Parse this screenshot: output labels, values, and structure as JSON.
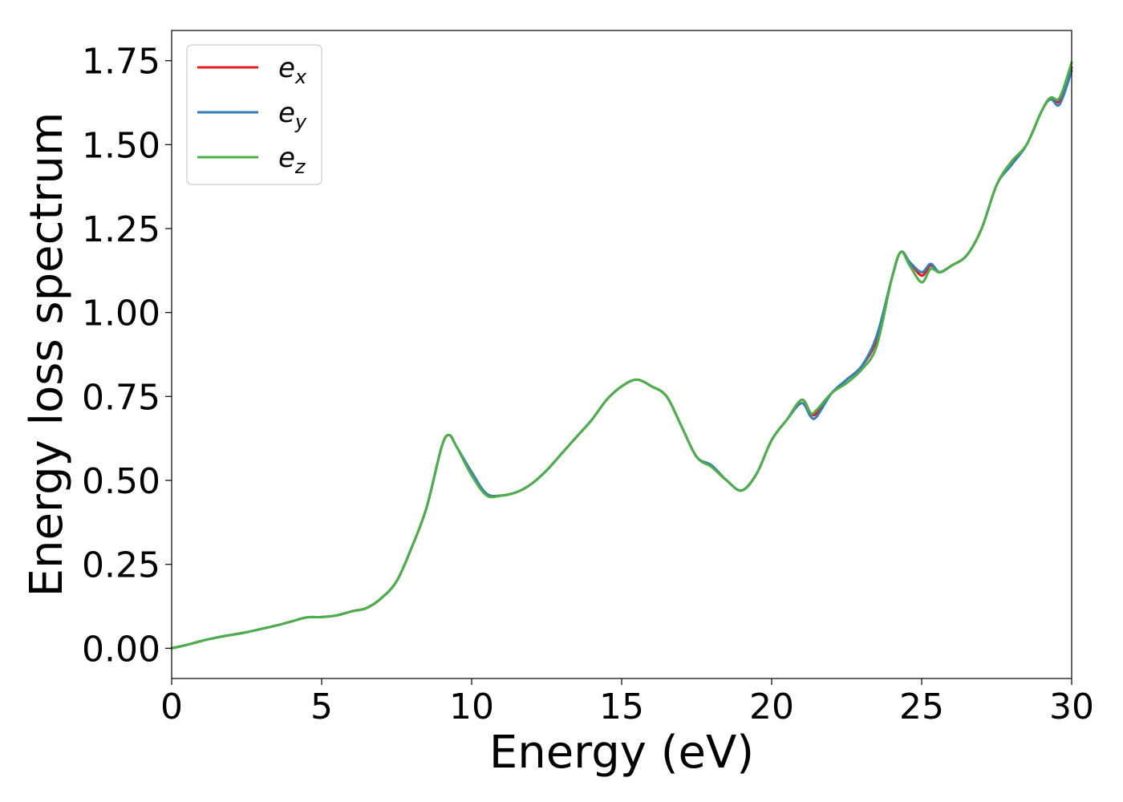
{
  "chart_data": {
    "type": "line",
    "title": "",
    "xlabel": "Energy (eV)",
    "ylabel": "Energy loss spectrum",
    "xlim": [
      0,
      30
    ],
    "ylim": [
      -0.09,
      1.84
    ],
    "xticks": [
      0,
      5,
      10,
      15,
      20,
      25,
      30
    ],
    "xtick_labels": [
      "0",
      "5",
      "10",
      "15",
      "20",
      "25",
      "30"
    ],
    "yticks": [
      0.0,
      0.25,
      0.5,
      0.75,
      1.0,
      1.25,
      1.5,
      1.75
    ],
    "ytick_labels": [
      "0.00",
      "0.25",
      "0.50",
      "0.75",
      "1.00",
      "1.25",
      "1.50",
      "1.75"
    ],
    "grid": false,
    "legend_position": "top-left",
    "x": [
      0,
      0.5,
      1,
      1.5,
      2,
      2.5,
      3,
      3.5,
      4,
      4.5,
      5,
      5.5,
      6,
      6.5,
      7,
      7.5,
      8,
      8.5,
      9,
      9.25,
      9.5,
      10,
      10.5,
      11,
      11.5,
      12,
      12.5,
      13,
      13.5,
      14,
      14.5,
      15,
      15.5,
      16,
      16.5,
      17,
      17.5,
      18,
      18.5,
      19,
      19.5,
      20,
      20.5,
      21,
      21.3,
      21.5,
      22,
      22.5,
      23,
      23.5,
      24,
      24.3,
      24.6,
      25,
      25.3,
      25.6,
      26,
      26.5,
      27,
      27.5,
      28,
      28.5,
      29,
      29.3,
      29.6,
      30
    ],
    "series": [
      {
        "name": "e",
        "subscript": "x",
        "color": "#e41a1c",
        "values": [
          0.0,
          0.01,
          0.022,
          0.032,
          0.04,
          0.048,
          0.058,
          0.068,
          0.08,
          0.092,
          0.093,
          0.098,
          0.11,
          0.12,
          0.15,
          0.2,
          0.3,
          0.42,
          0.6,
          0.635,
          0.6,
          0.52,
          0.46,
          0.455,
          0.465,
          0.49,
          0.53,
          0.58,
          0.63,
          0.68,
          0.74,
          0.78,
          0.8,
          0.78,
          0.75,
          0.66,
          0.57,
          0.54,
          0.5,
          0.47,
          0.52,
          0.62,
          0.68,
          0.74,
          0.7,
          0.7,
          0.76,
          0.8,
          0.84,
          0.92,
          1.1,
          1.18,
          1.15,
          1.11,
          1.14,
          1.12,
          1.14,
          1.17,
          1.25,
          1.38,
          1.45,
          1.5,
          1.6,
          1.64,
          1.63,
          1.73
        ]
      },
      {
        "name": "e",
        "subscript": "y",
        "color": "#377eb8",
        "values": [
          0.0,
          0.01,
          0.022,
          0.032,
          0.04,
          0.048,
          0.058,
          0.068,
          0.08,
          0.092,
          0.093,
          0.098,
          0.11,
          0.12,
          0.15,
          0.2,
          0.3,
          0.42,
          0.6,
          0.635,
          0.6,
          0.525,
          0.46,
          0.455,
          0.465,
          0.49,
          0.53,
          0.58,
          0.63,
          0.68,
          0.74,
          0.78,
          0.8,
          0.78,
          0.75,
          0.66,
          0.57,
          0.545,
          0.5,
          0.47,
          0.52,
          0.62,
          0.68,
          0.73,
          0.69,
          0.69,
          0.76,
          0.8,
          0.84,
          0.93,
          1.1,
          1.18,
          1.15,
          1.12,
          1.145,
          1.12,
          1.14,
          1.17,
          1.25,
          1.38,
          1.44,
          1.5,
          1.6,
          1.635,
          1.62,
          1.72
        ]
      },
      {
        "name": "e",
        "subscript": "z",
        "color": "#4daf4a",
        "values": [
          0.0,
          0.01,
          0.022,
          0.032,
          0.04,
          0.048,
          0.058,
          0.068,
          0.08,
          0.092,
          0.093,
          0.098,
          0.11,
          0.12,
          0.15,
          0.2,
          0.3,
          0.42,
          0.6,
          0.635,
          0.6,
          0.515,
          0.455,
          0.455,
          0.465,
          0.49,
          0.53,
          0.58,
          0.63,
          0.68,
          0.74,
          0.78,
          0.8,
          0.78,
          0.75,
          0.66,
          0.57,
          0.54,
          0.5,
          0.47,
          0.52,
          0.62,
          0.68,
          0.74,
          0.7,
          0.71,
          0.76,
          0.79,
          0.83,
          0.9,
          1.1,
          1.18,
          1.14,
          1.09,
          1.13,
          1.12,
          1.14,
          1.17,
          1.25,
          1.38,
          1.45,
          1.5,
          1.6,
          1.64,
          1.64,
          1.745
        ]
      }
    ]
  }
}
